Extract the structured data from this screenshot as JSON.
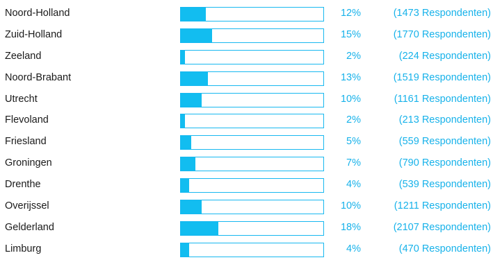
{
  "accent_color": "#12bdf0",
  "provinces": [
    {
      "name": "Noord-Holland",
      "percent": "12%",
      "respondents": "(1473 Respondenten)",
      "share": 12
    },
    {
      "name": "Zuid-Holland",
      "percent": "15%",
      "respondents": "(1770 Respondenten)",
      "share": 15
    },
    {
      "name": "Zeeland",
      "percent": "2%",
      "respondents": "(224 Respondenten)",
      "share": 2
    },
    {
      "name": "Noord-Brabant",
      "percent": "13%",
      "respondents": "(1519 Respondenten)",
      "share": 13
    },
    {
      "name": "Utrecht",
      "percent": "10%",
      "respondents": "(1161 Respondenten)",
      "share": 10
    },
    {
      "name": "Flevoland",
      "percent": "2%",
      "respondents": "(213 Respondenten)",
      "share": 2
    },
    {
      "name": "Friesland",
      "percent": "5%",
      "respondents": "(559 Respondenten)",
      "share": 5
    },
    {
      "name": "Groningen",
      "percent": "7%",
      "respondents": "(790 Respondenten)",
      "share": 7
    },
    {
      "name": "Drenthe",
      "percent": "4%",
      "respondents": "(539 Respondenten)",
      "share": 4
    },
    {
      "name": "Overijssel",
      "percent": "10%",
      "respondents": "(1211 Respondenten)",
      "share": 10
    },
    {
      "name": "Gelderland",
      "percent": "18%",
      "respondents": "(2107 Respondenten)",
      "share": 18
    },
    {
      "name": "Limburg",
      "percent": "4%",
      "respondents": "(470 Respondenten)",
      "share": 4
    }
  ]
}
